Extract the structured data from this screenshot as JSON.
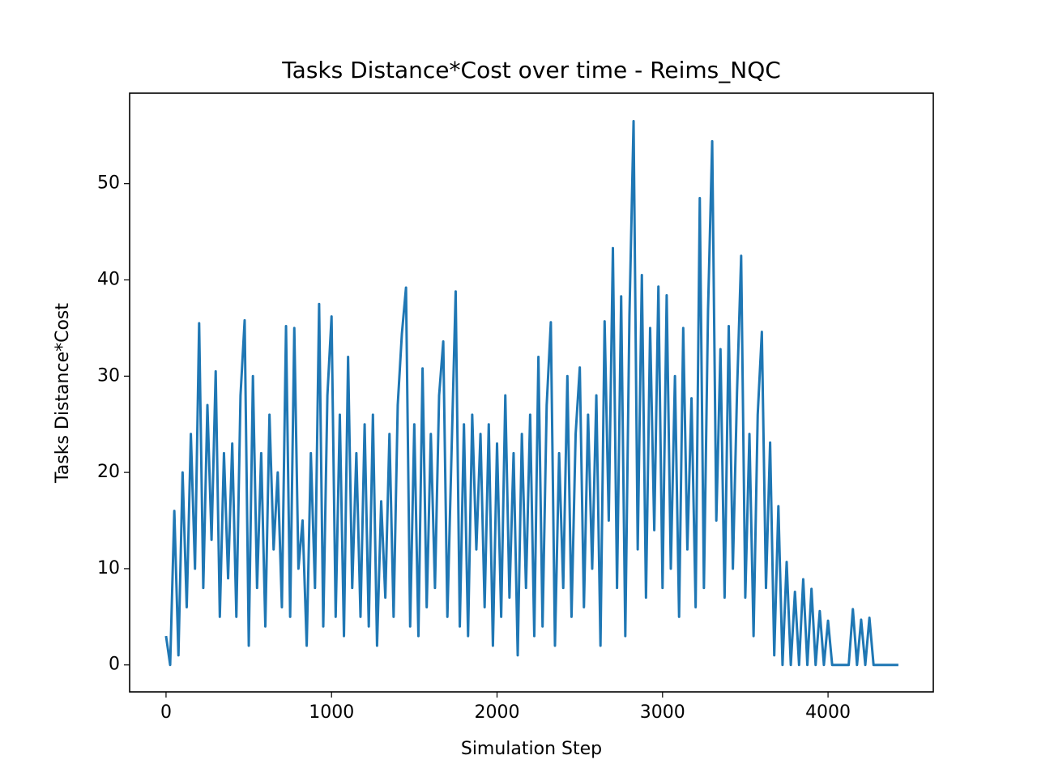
{
  "chart_data": {
    "type": "line",
    "title": "Tasks Distance*Cost over time - Reims_NQC",
    "x_label": "Simulation Step",
    "y_label": "Tasks Distance*Cost",
    "xlim": [
      -220,
      4636
    ],
    "ylim": [
      -2.8,
      59.4
    ],
    "xticks": [
      0,
      1000,
      2000,
      3000,
      4000
    ],
    "yticks": [
      0,
      10,
      20,
      30,
      40,
      50
    ],
    "x": [
      0,
      25,
      50,
      75,
      100,
      125,
      150,
      175,
      200,
      225,
      250,
      275,
      300,
      325,
      350,
      375,
      400,
      425,
      450,
      475,
      500,
      525,
      550,
      575,
      600,
      625,
      650,
      675,
      700,
      725,
      750,
      775,
      800,
      825,
      850,
      875,
      900,
      925,
      950,
      975,
      1000,
      1025,
      1050,
      1075,
      1100,
      1125,
      1150,
      1175,
      1200,
      1225,
      1250,
      1275,
      1300,
      1325,
      1350,
      1375,
      1400,
      1425,
      1450,
      1475,
      1500,
      1525,
      1550,
      1575,
      1600,
      1625,
      1650,
      1675,
      1700,
      1725,
      1750,
      1775,
      1800,
      1825,
      1850,
      1875,
      1900,
      1925,
      1950,
      1975,
      2000,
      2025,
      2050,
      2075,
      2100,
      2125,
      2150,
      2175,
      2200,
      2225,
      2250,
      2275,
      2300,
      2325,
      2350,
      2375,
      2400,
      2425,
      2450,
      2475,
      2500,
      2525,
      2550,
      2575,
      2600,
      2625,
      2650,
      2675,
      2700,
      2725,
      2750,
      2775,
      2800,
      2825,
      2850,
      2875,
      2900,
      2925,
      2950,
      2975,
      3000,
      3025,
      3050,
      3075,
      3100,
      3125,
      3150,
      3175,
      3200,
      3225,
      3250,
      3275,
      3300,
      3325,
      3350,
      3375,
      3400,
      3425,
      3450,
      3475,
      3500,
      3525,
      3550,
      3575,
      3600,
      3625,
      3650,
      3675,
      3700,
      3725,
      3750,
      3775,
      3800,
      3825,
      3850,
      3875,
      3900,
      3925,
      3950,
      3975,
      4000,
      4025,
      4050,
      4075,
      4100,
      4125,
      4150,
      4175,
      4200,
      4225,
      4250,
      4275,
      4300,
      4325,
      4350,
      4375,
      4400,
      4425
    ],
    "series": [
      {
        "color": "#1f77b4",
        "values": [
          3,
          0,
          16,
          1,
          20,
          6,
          24,
          10,
          35.5,
          8,
          27,
          13,
          30.5,
          5,
          22,
          9,
          23,
          5,
          28,
          35.8,
          2,
          30,
          8,
          22,
          4,
          26,
          12,
          20,
          6,
          35.2,
          5,
          35,
          10,
          15,
          2,
          22,
          8,
          37.5,
          4,
          28,
          36.2,
          5,
          26,
          3,
          32,
          8,
          22,
          5,
          25,
          4,
          26,
          2,
          17,
          7,
          24,
          5,
          27,
          34.4,
          39.2,
          4,
          25,
          3,
          30.8,
          6,
          24,
          8,
          28,
          33.6,
          5,
          22,
          38.8,
          4,
          25,
          3,
          26,
          12,
          24,
          6,
          25,
          2,
          23,
          5,
          28,
          7,
          22,
          1,
          24,
          8,
          26,
          3,
          32,
          4,
          27,
          35.6,
          2,
          22,
          8,
          30,
          5,
          24,
          30.9,
          6,
          26,
          10,
          28,
          2,
          35.7,
          15,
          43.3,
          8,
          38.3,
          3,
          36.3,
          56.5,
          12,
          40.5,
          7,
          35,
          14,
          39.3,
          8,
          38.4,
          10,
          30,
          5,
          35,
          12,
          27.7,
          6,
          48.5,
          8,
          36.9,
          54.4,
          15,
          32.8,
          7,
          35.2,
          10,
          28.3,
          42.5,
          7,
          24,
          3,
          26,
          34.6,
          8,
          23.1,
          1,
          16.5,
          0,
          10.7,
          0,
          7.6,
          0,
          8.9,
          0,
          7.9,
          0,
          5.6,
          0,
          4.6,
          0,
          0,
          0,
          0,
          0,
          5.8,
          0,
          4.7,
          0,
          4.9,
          0,
          0,
          0,
          0,
          0,
          0,
          0
        ]
      }
    ]
  }
}
